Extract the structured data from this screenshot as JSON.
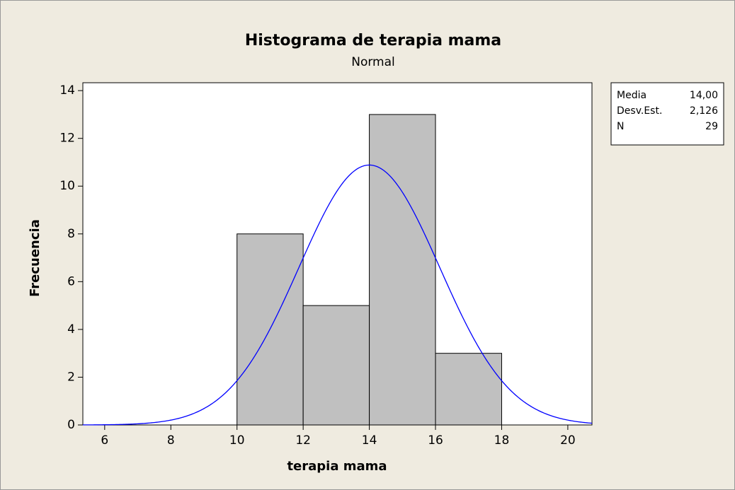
{
  "chart_data": {
    "type": "histogram",
    "title": "Histograma de terapia mama",
    "subtitle": "Normal",
    "xlabel": "terapia mama",
    "ylabel": "Frecuencia",
    "bins": [
      10,
      12,
      14,
      16,
      18
    ],
    "counts": [
      8,
      5,
      13,
      3
    ],
    "bar_color": "#c0c0c0",
    "curve_color": "#0000ff",
    "xlim": [
      5.34,
      20.73
    ],
    "xticks": [
      6,
      8,
      10,
      12,
      14,
      16,
      18,
      20
    ],
    "ylim": [
      0,
      14.33
    ],
    "yticks": [
      0,
      2,
      4,
      6,
      8,
      10,
      12,
      14
    ],
    "stats": [
      {
        "name": "Media",
        "value": 14,
        "label": "14,00"
      },
      {
        "name": "Desv.Est.",
        "value": 2.126,
        "label": "2,126"
      },
      {
        "name": "N",
        "value": 29
      }
    ]
  }
}
